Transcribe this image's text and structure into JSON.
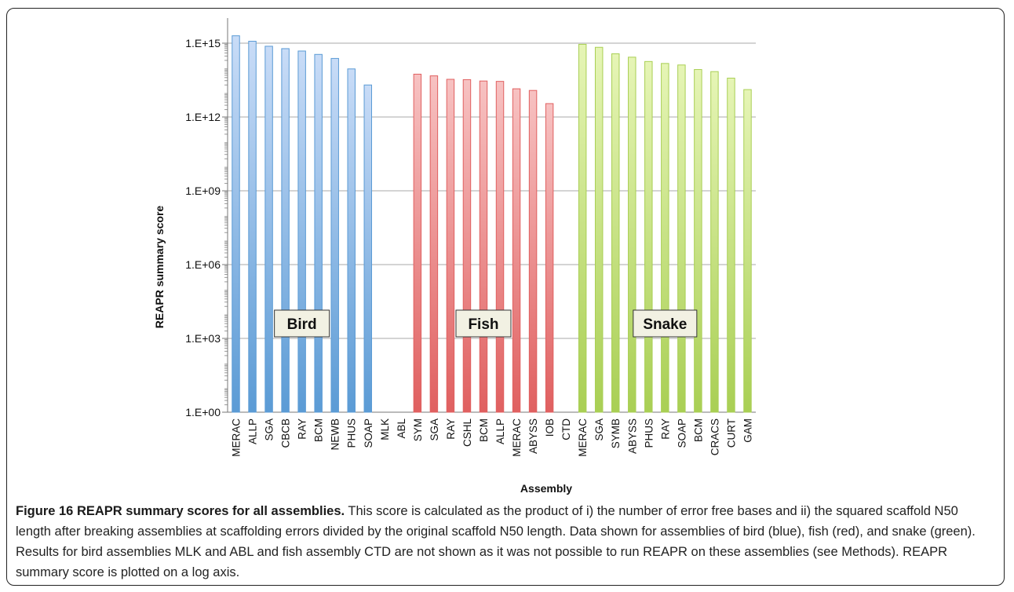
{
  "chart_data": {
    "type": "bar",
    "scale": "log10",
    "ylabel": "REAPR summary score",
    "xlabel": "Assembly",
    "yticks": [
      "1.E+00",
      "1.E+03",
      "1.E+06",
      "1.E+09",
      "1.E+12",
      "1.E+15"
    ],
    "ylim": [
      1,
      1000000000000000.0
    ],
    "grid": true,
    "groups": [
      {
        "name": "Bird",
        "color": "#5b9bd5",
        "categories": [
          "MERAC",
          "ALLP",
          "SGA",
          "CBCB",
          "RAY",
          "BCM",
          "NEWB",
          "PHUS",
          "SOAP",
          "MLK",
          "ABL"
        ],
        "values": [
          2000000000000000.0,
          1200000000000000.0,
          750000000000000.0,
          600000000000000.0,
          480000000000000.0,
          350000000000000.0,
          240000000000000.0,
          90000000000000.0,
          20000000000000.0,
          null,
          null
        ]
      },
      {
        "name": "Fish",
        "color": "#e06060",
        "categories": [
          "SYM",
          "SGA",
          "RAY",
          "CSHL",
          "BCM",
          "ALLP",
          "MERAC",
          "ABYSS",
          "IOB",
          "CTD"
        ],
        "values": [
          55000000000000.0,
          47000000000000.0,
          34000000000000.0,
          33000000000000.0,
          29000000000000.0,
          28000000000000.0,
          14000000000000.0,
          12000000000000.0,
          3500000000000.0,
          null
        ]
      },
      {
        "name": "Snake",
        "color": "#a9cf54",
        "categories": [
          "MERAC",
          "SGA",
          "SYMB",
          "ABYSS",
          "PHUS",
          "RAY",
          "SOAP",
          "BCM",
          "CRACS",
          "CURT",
          "GAM"
        ],
        "values": [
          900000000000000.0,
          680000000000000.0,
          370000000000000.0,
          270000000000000.0,
          180000000000000.0,
          150000000000000.0,
          130000000000000.0,
          85000000000000.0,
          70000000000000.0,
          38000000000000.0,
          13000000000000.0
        ]
      }
    ]
  },
  "caption": {
    "title": "Figure 16 REAPR summary scores for all assemblies.",
    "text": " This score is calculated as the product of i) the number of error free bases and ii) the squared scaffold N50 length after breaking assemblies at scaffolding errors divided by the original scaffold N50 length. Data shown for assemblies of bird (blue), fish (red), and snake (green). Results for bird assemblies MLK and ABL and fish assembly CTD are not shown as it was not possible to run REAPR on these assemblies (see Methods). REAPR summary score is plotted on a log axis."
  }
}
